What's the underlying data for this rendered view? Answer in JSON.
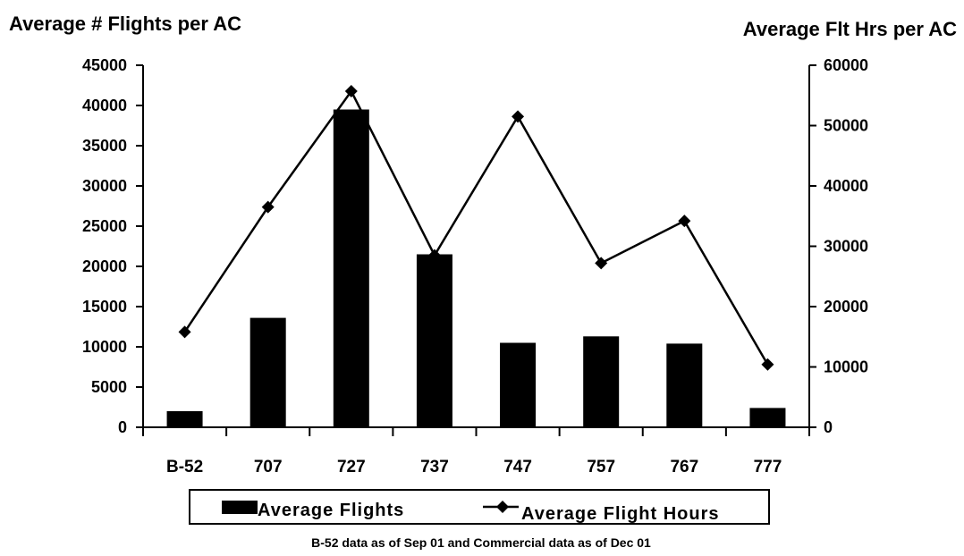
{
  "chart_data": {
    "type": "bar",
    "title": "",
    "categories": [
      "B-52",
      "707",
      "727",
      "737",
      "747",
      "757",
      "767",
      "777"
    ],
    "series": [
      {
        "name": "Average Flights",
        "type": "bar",
        "axis": "left",
        "values": [
          2000,
          13600,
          39500,
          21500,
          10500,
          11300,
          10400,
          2400
        ]
      },
      {
        "name": "Average Flight Hours",
        "type": "line",
        "axis": "right",
        "values": [
          15800,
          36500,
          55700,
          28500,
          51500,
          27200,
          34200,
          10400
        ]
      }
    ],
    "ylabel_left": "Average # Flights per AC",
    "ylabel_right": "Average Flt Hrs per AC",
    "ylim_left": [
      0,
      45000
    ],
    "ylim_right": [
      0,
      60000
    ],
    "yticks_left": [
      "45000",
      "40000",
      "35000",
      "30000",
      "25000",
      "20000",
      "15000",
      "10000",
      "5000",
      "0"
    ],
    "yticks_right": [
      "60000",
      "50000",
      "40000",
      "30000",
      "20000",
      "10000",
      "0"
    ],
    "grid": false,
    "legend_position": "bottom",
    "footnote": "B-52 data as of Sep 01 and Commercial data as of Dec 01",
    "colors": {
      "bars": "#000000",
      "line": "#000000",
      "background": "#ffffff"
    }
  }
}
